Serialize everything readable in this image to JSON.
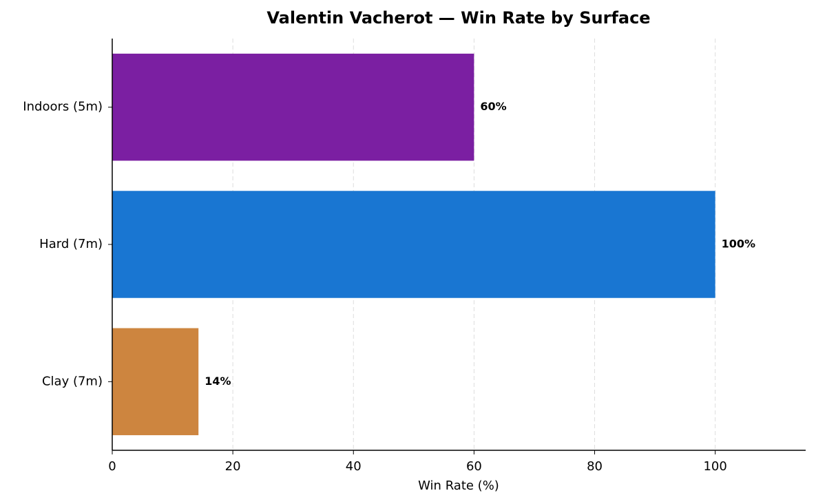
{
  "chart_data": {
    "type": "barh",
    "title": "Valentin Vacherot — Win Rate by Surface",
    "xlabel": "Win Rate (%)",
    "categories": [
      "Indoors (5m)",
      "Hard (7m)",
      "Clay (7m)"
    ],
    "values": [
      60,
      100,
      14.3
    ],
    "value_labels": [
      "60%",
      "100%",
      "14%"
    ],
    "colors": [
      "#7b1fa2",
      "#1976d2",
      "#cd853f"
    ],
    "xlim": [
      0,
      115
    ],
    "xticks": [
      0,
      20,
      40,
      60,
      80,
      100
    ],
    "grid": true
  }
}
